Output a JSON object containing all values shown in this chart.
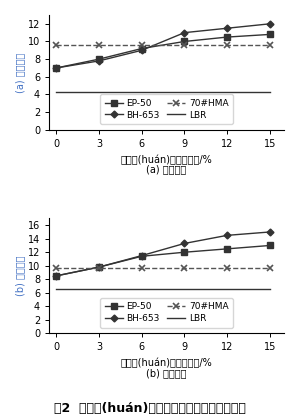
{
  "x": [
    0,
    3,
    6,
    9,
    12,
    15
  ],
  "subplot_a": {
    "EP50": [
      7.0,
      8.0,
      9.2,
      10.0,
      10.5,
      10.8
    ],
    "BH653": [
      7.0,
      7.8,
      9.0,
      11.0,
      11.5,
      12.0
    ],
    "HMA70": [
      9.6,
      9.6,
      9.6,
      9.6,
      9.6,
      9.6
    ],
    "LBR": [
      4.3,
      4.3,
      4.3,
      4.3,
      4.3,
      4.3
    ],
    "ylabel": "(a) 初始強度",
    "xlabel": "水性環(huán)氧樹脂摻量/%",
    "sublabel": "(a) 初始強度",
    "ylim": [
      0,
      13
    ],
    "yticks": [
      0,
      2,
      4,
      6,
      8,
      10,
      12
    ]
  },
  "subplot_b": {
    "EP50": [
      8.5,
      9.8,
      11.4,
      12.0,
      12.5,
      13.0
    ],
    "BH653": [
      8.5,
      9.8,
      11.5,
      13.3,
      14.5,
      15.0
    ],
    "HMA70": [
      9.6,
      9.6,
      9.6,
      9.6,
      9.6,
      9.6
    ],
    "LBR": [
      6.5,
      6.5,
      6.5,
      6.5,
      6.5,
      6.5
    ],
    "ylabel": "(b) 成型強度",
    "xlabel": "水性環(huán)氧樹脂摻量/%",
    "sublabel": "(b) 成型強度",
    "ylim": [
      0,
      17
    ],
    "yticks": [
      0,
      2,
      4,
      6,
      8,
      10,
      12,
      14,
      16
    ]
  },
  "legend_labels": [
    "EP-50",
    "BH-653",
    "70#HMA",
    "LBR"
  ],
  "line_colors": [
    "#000000",
    "#000000",
    "#000000",
    "#000000"
  ],
  "markers": [
    "s",
    "D",
    "*",
    "none"
  ],
  "linestyles": [
    "-",
    "-",
    "-",
    "-"
  ],
  "hma_linestyle": "--",
  "ylabel_color_a": "#4472C4",
  "ylabel_color_b": "#4472C4",
  "caption": "圖2  水性環(huán)氧乳化型冷補料強度試驗結果",
  "xticks": [
    0,
    3,
    6,
    9,
    12,
    15
  ],
  "fontsize_tick": 7,
  "fontsize_label": 7,
  "fontsize_legend": 6.5,
  "fontsize_caption": 9
}
